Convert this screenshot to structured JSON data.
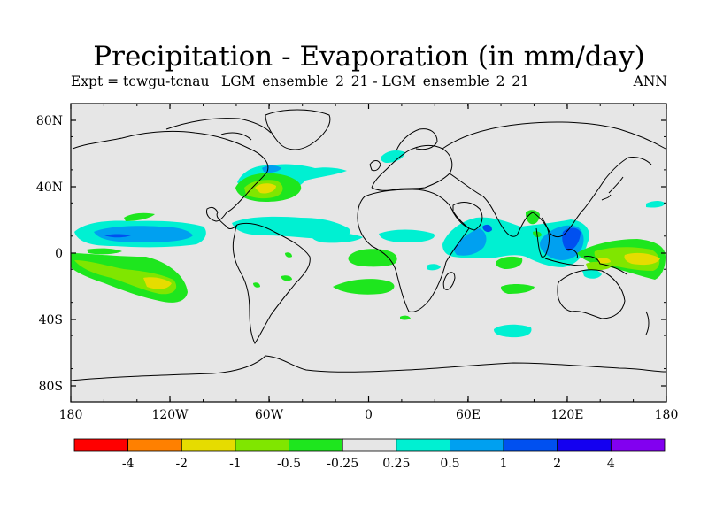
{
  "title": "Precipitation - Evaporation (in mm/day)",
  "experiment_label": "Expt = tcwgu-tcnau",
  "comparison_label": "LGM_ensemble_2_21 - LGM_ensemble_2_21",
  "season_label": "ANN",
  "map": {
    "projection": "cylindrical-equidistant",
    "lat_ticks": [
      "80N",
      "40N",
      "0",
      "40S",
      "80S"
    ],
    "lon_ticks": [
      "180",
      "120W",
      "60W",
      "0",
      "60E",
      "120E",
      "180"
    ],
    "background_color": "#e6e6e6",
    "coast_color": "#000000"
  },
  "colorbar": {
    "colors": [
      "#ff0000",
      "#ff8000",
      "#e6dc00",
      "#80e600",
      "#1ee61e",
      "#e6e6e6",
      "#00f0d2",
      "#00a0f0",
      "#0050f0",
      "#1400f0",
      "#8200f0"
    ],
    "labels": [
      "-4",
      "-2",
      "-1",
      "-0.5",
      "-0.25",
      "0.25",
      "0.5",
      "1",
      "2",
      "4"
    ]
  },
  "fields": [
    {
      "level": "0.5",
      "color": "#00f0d2"
    },
    {
      "level": "1",
      "color": "#00a0f0"
    },
    {
      "level": "2",
      "color": "#0050f0"
    },
    {
      "level": "-0.25",
      "color": "#1ee61e"
    },
    {
      "level": "-0.5",
      "color": "#80e600"
    },
    {
      "level": "-1",
      "color": "#e6dc00"
    }
  ]
}
